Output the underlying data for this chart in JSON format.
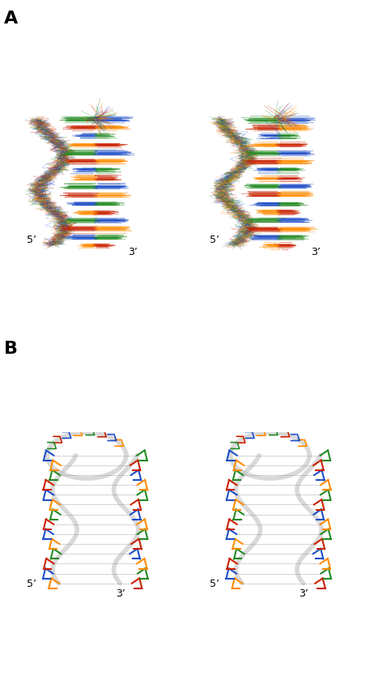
{
  "fig_width": 4.62,
  "fig_height": 8.5,
  "dpi": 100,
  "background": "#ffffff",
  "panel_A_label": "A",
  "panel_B_label": "B",
  "label_fontsize": 16,
  "label_fontweight": "bold",
  "prime5": "5’",
  "prime3": "3’",
  "colors": {
    "A": "#FF8C00",
    "U": "#1E4EC8",
    "C": "#CC2200",
    "G": "#228B22",
    "backbone": "#C0C0C0"
  },
  "annotation_fontsize": 9
}
